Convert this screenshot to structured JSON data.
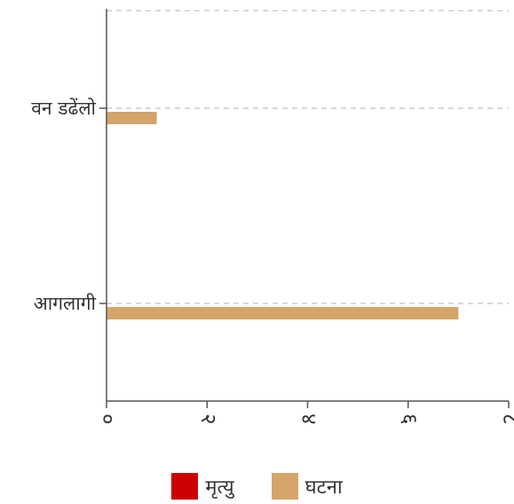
{
  "chart_data": {
    "type": "bar",
    "orientation": "horizontal",
    "categories": [
      "वन डढेंलो",
      "आगलागी"
    ],
    "series": [
      {
        "name": "मृत्यु",
        "color": "#cc0000",
        "values": [
          0,
          0
        ]
      },
      {
        "name": "घटना",
        "color": "#d4a46a",
        "values": [
          1,
          7
        ]
      }
    ],
    "xlim": [
      0,
      8
    ],
    "x_ticks": [
      0,
      2,
      4,
      6,
      8
    ],
    "x_tick_labels": [
      "०",
      "२",
      "४",
      "६",
      "८"
    ],
    "grid": "horizontal dashed",
    "legend_position": "bottom"
  }
}
